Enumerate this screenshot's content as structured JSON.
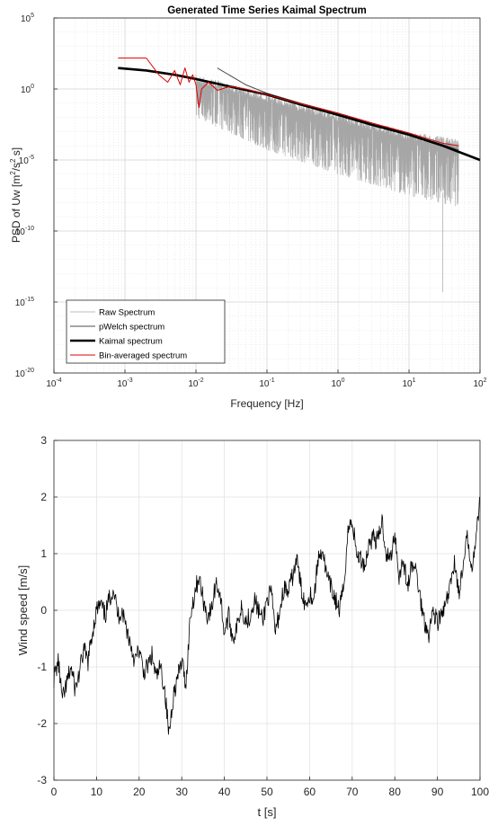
{
  "chart_data": [
    {
      "type": "line",
      "title": "Generated Time Series Kaimal Spectrum",
      "xlabel": "Frequency [Hz]",
      "ylabel": "PSD of Uw [m",
      "ylabel_parts": [
        "PSD of Uw [m",
        "2",
        "/s",
        "2",
        " s]"
      ],
      "xscale": "log",
      "yscale": "log",
      "xlim": [
        0.0001,
        100
      ],
      "ylim": [
        1e-20,
        100000
      ],
      "grid": true,
      "legend_position": "bottom-left",
      "xticks": [
        {
          "value": 0.0001,
          "base": "10",
          "exp": "-4"
        },
        {
          "value": 0.001,
          "base": "10",
          "exp": "-3"
        },
        {
          "value": 0.01,
          "base": "10",
          "exp": "-2"
        },
        {
          "value": 0.1,
          "base": "10",
          "exp": "-1"
        },
        {
          "value": 1,
          "base": "10",
          "exp": "0"
        },
        {
          "value": 10,
          "base": "10",
          "exp": "1"
        },
        {
          "value": 100,
          "base": "10",
          "exp": "2"
        }
      ],
      "yticks": [
        {
          "value": 1e-20,
          "base": "10",
          "exp": "-20"
        },
        {
          "value": 1e-15,
          "base": "10",
          "exp": "-15"
        },
        {
          "value": 1e-10,
          "base": "10",
          "exp": "-10"
        },
        {
          "value": 1e-05,
          "base": "10",
          "exp": "-5"
        },
        {
          "value": 1,
          "base": "10",
          "exp": "0"
        },
        {
          "value": 100000,
          "base": "10",
          "exp": "5"
        }
      ],
      "series": [
        {
          "name": "Raw Spectrum",
          "color": "#a6a6a6",
          "style": "thin",
          "x_range": [
            0.01,
            50
          ],
          "upper_trend": [
            [
              0.01,
              10
            ],
            [
              0.1,
              0.5
            ],
            [
              1,
              0.02
            ],
            [
              10,
              0.001
            ],
            [
              50,
              0.0003
            ]
          ],
          "lower_trend": [
            [
              0.01,
              0.01
            ],
            [
              0.1,
              5e-05
            ],
            [
              1,
              1e-06
            ],
            [
              10,
              3e-08
            ],
            [
              50,
              5e-09
            ]
          ],
          "extreme_minimum": [
            30,
            5e-15
          ]
        },
        {
          "name": "pWelch spectrum",
          "color": "#4d4d4d",
          "x": [
            0.02,
            0.05,
            0.1,
            0.3,
            1,
            3,
            10,
            30,
            50
          ],
          "y": [
            30,
            2,
            0.5,
            0.1,
            0.02,
            0.004,
            0.0007,
            0.00012,
            5e-05
          ]
        },
        {
          "name": "Kaimal spectrum",
          "color": "#000000",
          "style": "thick",
          "x": [
            0.0008,
            0.002,
            0.005,
            0.01,
            0.03,
            0.1,
            0.3,
            1,
            3,
            10,
            30,
            100
          ],
          "y": [
            30,
            20,
            10,
            5,
            1.5,
            0.4,
            0.08,
            0.015,
            0.003,
            0.0006,
            0.0001,
            1e-05
          ]
        },
        {
          "name": "Bin-averaged spectrum",
          "color": "#dd0000",
          "x": [
            0.0008,
            0.002,
            0.003,
            0.004,
            0.0045,
            0.005,
            0.006,
            0.007,
            0.008,
            0.009,
            0.01,
            0.011,
            0.012,
            0.015,
            0.02,
            0.03,
            0.05,
            0.1,
            0.3,
            1,
            3,
            10,
            30,
            50
          ],
          "y": [
            150,
            150,
            10,
            3,
            8,
            20,
            2,
            30,
            3,
            10,
            2,
            0.05,
            1,
            3,
            0.8,
            1.5,
            1,
            0.4,
            0.09,
            0.02,
            0.004,
            0.0008,
            0.00015,
            0.0001
          ]
        }
      ]
    },
    {
      "type": "line",
      "title": "",
      "xlabel": "t [s]",
      "ylabel": "Wind speed [m/s]",
      "xlim": [
        0,
        100
      ],
      "ylim": [
        -3,
        3
      ],
      "grid": true,
      "xticks": [
        "0",
        "10",
        "20",
        "30",
        "40",
        "50",
        "60",
        "70",
        "80",
        "90",
        "100"
      ],
      "yticks": [
        "-3",
        "-2",
        "-1",
        "0",
        "1",
        "2",
        "3"
      ],
      "series": [
        {
          "color": "#000000",
          "x": [
            0,
            1,
            2,
            3,
            4,
            5,
            6,
            7,
            8,
            9,
            10,
            11,
            12,
            13,
            14,
            15,
            16,
            17,
            18,
            19,
            20,
            21,
            22,
            23,
            24,
            25,
            26,
            27,
            28,
            29,
            30,
            31,
            32,
            33,
            34,
            35,
            36,
            37,
            38,
            39,
            40,
            41,
            42,
            43,
            44,
            45,
            46,
            47,
            48,
            49,
            50,
            51,
            52,
            53,
            54,
            55,
            56,
            57,
            58,
            59,
            60,
            61,
            62,
            63,
            64,
            65,
            66,
            67,
            68,
            69,
            70,
            71,
            72,
            73,
            74,
            75,
            76,
            77,
            78,
            79,
            80,
            81,
            82,
            83,
            84,
            85,
            86,
            87,
            88,
            89,
            90,
            91,
            92,
            93,
            94,
            95,
            96,
            97,
            98,
            99,
            100
          ],
          "y": [
            -1.2,
            -0.9,
            -1.6,
            -1.3,
            -1.0,
            -1.4,
            -1.1,
            -0.7,
            -0.9,
            -0.4,
            0.0,
            0.1,
            -0.1,
            0.2,
            0.4,
            -0.1,
            0.0,
            -0.3,
            -0.6,
            -0.9,
            -0.7,
            -1.1,
            -1.0,
            -0.8,
            -1.2,
            -1.0,
            -1.4,
            -2.2,
            -1.5,
            -1.2,
            -0.9,
            -1.3,
            -0.1,
            0.3,
            0.6,
            0.2,
            -0.1,
            0.0,
            0.5,
            0.3,
            -0.4,
            -0.1,
            -0.5,
            -0.3,
            0.1,
            -0.2,
            -0.1,
            0.2,
            0.0,
            -0.2,
            0.2,
            0.3,
            -0.4,
            0.0,
            0.4,
            0.3,
            0.6,
            0.9,
            0.4,
            0.1,
            0.3,
            0.2,
            0.9,
            1.1,
            0.6,
            0.4,
            0.2,
            0.0,
            0.4,
            1.4,
            1.6,
            1.0,
            0.9,
            0.8,
            1.2,
            1.3,
            1.2,
            1.6,
            1.0,
            0.9,
            1.4,
            0.6,
            0.9,
            0.4,
            0.8,
            0.7,
            0.2,
            -0.2,
            -0.4,
            0.0,
            -0.2,
            -0.1,
            0.1,
            0.4,
            0.9,
            0.3,
            0.7,
            1.3,
            0.8,
            1.2,
            2.0
          ]
        }
      ]
    }
  ]
}
